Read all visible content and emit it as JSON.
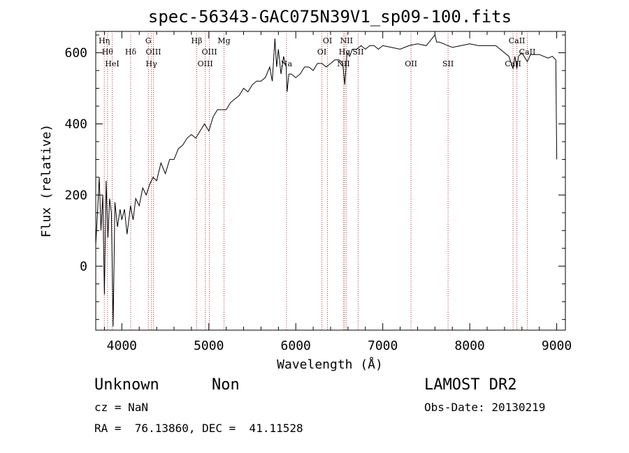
{
  "chart_data": {
    "type": "line",
    "title": "spec-56343-GAC075N39V1_sp09-100.fits",
    "xlabel": "Wavelength (Å)",
    "ylabel": "Flux (relative)",
    "xlim": [
      3700,
      9100
    ],
    "ylim": [
      -180,
      660
    ],
    "x_ticks": [
      4000,
      5000,
      6000,
      7000,
      8000,
      9000
    ],
    "y_ticks": [
      0,
      200,
      400,
      600
    ],
    "line_color": "#000000",
    "marker_color": "#b03030",
    "series": [
      {
        "x": [
          3700,
          3720,
          3740,
          3760,
          3780,
          3800,
          3820,
          3840,
          3860,
          3880,
          3900,
          3920,
          3950,
          3980,
          4000,
          4030,
          4060,
          4100,
          4130,
          4160,
          4200,
          4240,
          4280,
          4320,
          4360,
          4400,
          4450,
          4500,
          4550,
          4600,
          4650,
          4700,
          4750,
          4800,
          4850,
          4900,
          4950,
          5000,
          5050,
          5100,
          5150,
          5200,
          5250,
          5300,
          5350,
          5400,
          5450,
          5500,
          5550,
          5600,
          5650,
          5700,
          5730,
          5760,
          5780,
          5800,
          5830,
          5860,
          5890,
          5900,
          5920,
          5950,
          6000,
          6050,
          6100,
          6150,
          6200,
          6250,
          6300,
          6350,
          6400,
          6450,
          6500,
          6540,
          6563,
          6590,
          6620,
          6650,
          6700,
          6750,
          6800,
          6850,
          6900,
          6950,
          7000,
          7100,
          7200,
          7300,
          7400,
          7500,
          7600,
          7620,
          7650,
          7700,
          7800,
          7900,
          8000,
          8100,
          8200,
          8300,
          8400,
          8450,
          8498,
          8520,
          8542,
          8560,
          8600,
          8662,
          8700,
          8750,
          8800,
          8850,
          8900,
          8950,
          8990,
          9000
        ],
        "y": [
          60,
          150,
          250,
          100,
          200,
          -80,
          240,
          80,
          190,
          150,
          -170,
          180,
          110,
          160,
          130,
          160,
          90,
          170,
          130,
          190,
          170,
          220,
          200,
          230,
          250,
          240,
          290,
          260,
          300,
          300,
          330,
          340,
          360,
          370,
          360,
          380,
          400,
          380,
          420,
          440,
          440,
          440,
          460,
          470,
          480,
          500,
          490,
          510,
          520,
          520,
          530,
          560,
          520,
          640,
          560,
          610,
          540,
          590,
          560,
          490,
          540,
          540,
          530,
          540,
          560,
          560,
          550,
          570,
          570,
          560,
          570,
          580,
          580,
          570,
          510,
          600,
          590,
          610,
          610,
          620,
          610,
          620,
          620,
          610,
          620,
          615,
          610,
          620,
          625,
          620,
          650,
          630,
          630,
          625,
          615,
          620,
          625,
          620,
          620,
          620,
          600,
          590,
          555,
          590,
          555,
          590,
          600,
          575,
          595,
          595,
          595,
          590,
          585,
          590,
          580,
          300
        ]
      }
    ],
    "lines": [
      {
        "wl": 3798,
        "label": "Hη",
        "row": 1
      },
      {
        "wl": 3835,
        "label": "Hθ",
        "row": 2
      },
      {
        "wl": 3889,
        "label": "HeI",
        "row": 3
      },
      {
        "wl": 4102,
        "label": "Hδ",
        "row": 2
      },
      {
        "wl": 4305,
        "label": "G",
        "row": 1
      },
      {
        "wl": 4340,
        "label": "Hγ",
        "row": 3
      },
      {
        "wl": 4363,
        "label": "OIII",
        "row": 2
      },
      {
        "wl": 4861,
        "label": "Hβ",
        "row": 1
      },
      {
        "wl": 4959,
        "label": "OIII",
        "row": 3
      },
      {
        "wl": 5007,
        "label": "OIII",
        "row": 2
      },
      {
        "wl": 5175,
        "label": "Mg",
        "row": 1
      },
      {
        "wl": 5893,
        "label": "Na",
        "row": 3
      },
      {
        "wl": 6300,
        "label": "OI",
        "row": 2
      },
      {
        "wl": 6364,
        "label": "OI",
        "row": 1
      },
      {
        "wl": 6548,
        "label": "NII",
        "row": 3
      },
      {
        "wl": 6563,
        "label": "Hα",
        "row": 2
      },
      {
        "wl": 6583,
        "label": "NII",
        "row": 1
      },
      {
        "wl": 6717,
        "label": "SII",
        "row": 2
      },
      {
        "wl": 7325,
        "label": "OII",
        "row": 3
      },
      {
        "wl": 7751,
        "label": "SII",
        "row": 3
      },
      {
        "wl": 8498,
        "label": "CaII",
        "row": 3
      },
      {
        "wl": 8542,
        "label": "CaII",
        "row": 1
      },
      {
        "wl": 8662,
        "label": "CaII",
        "row": 2
      }
    ]
  },
  "info": {
    "object_class": "Unknown",
    "object_subclass": "Non",
    "survey": "LAMOST DR2",
    "redshift": "cz = NaN",
    "obs_date": "Obs-Date: 20130219",
    "coords": "RA =  76.13860, DEC =  41.11528"
  }
}
